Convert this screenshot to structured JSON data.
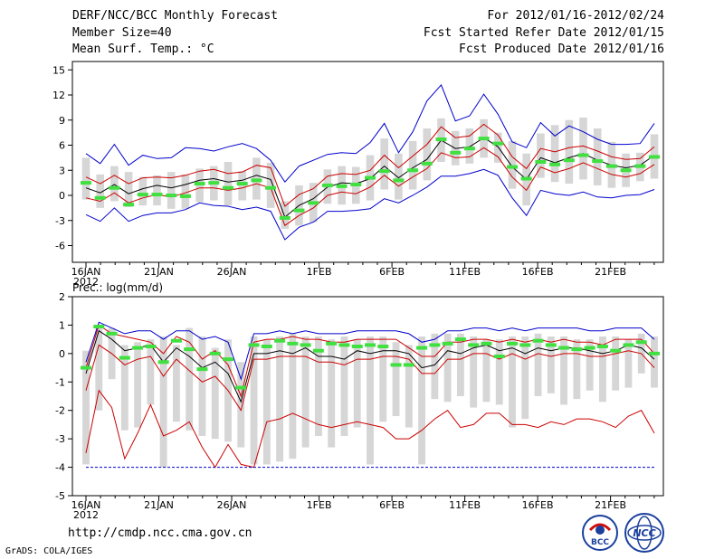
{
  "header": {
    "title": "DERF/NCC/BCC Monthly Forecast",
    "member": "Member Size=40",
    "variable": "Mean Surf. Temp.: °C",
    "period": "For 2012/01/16-2012/02/24",
    "started": "Fcst Started Refer Date 2012/01/15",
    "produced": "Fcst Produced Date 2012/01/16"
  },
  "footer": {
    "url": "http://cmdp.ncc.cma.gov.cn",
    "grads": "GrADS: COLA/IGES"
  },
  "logos": {
    "bcc": "BCC",
    "ncc": "NCC"
  },
  "colors": {
    "box": "#d6d6d6",
    "median": "#40e040",
    "mean": "#000000",
    "red": "#cc0000",
    "blue": "#0000cc",
    "axis": "#000000"
  },
  "chart_data": [
    {
      "type": "line",
      "title": "Mean Surf. Temp.: °C",
      "x_tick_labels": [
        "16JAN",
        "21JAN",
        "26JAN",
        "1FEB",
        "6FEB",
        "11FEB",
        "16FEB",
        "21FEB"
      ],
      "x_tick_days": [
        1,
        6,
        11,
        17,
        22,
        27,
        32,
        37
      ],
      "year_label": "2012",
      "ylim": [
        -8,
        16
      ],
      "y_ticks": [
        -6,
        -3,
        0,
        3,
        6,
        9,
        12,
        15
      ],
      "series": {
        "mean": [
          0.9,
          0.3,
          1.3,
          0.2,
          0.8,
          1.2,
          0.9,
          1.3,
          1.8,
          2.0,
          1.6,
          1.8,
          2.4,
          1.9,
          -2.6,
          -1.2,
          -0.4,
          1.0,
          1.5,
          1.4,
          2.0,
          3.5,
          2.1,
          3.3,
          4.3,
          6.6,
          5.6,
          5.8,
          6.9,
          5.8,
          3.4,
          1.9,
          4.5,
          3.9,
          4.5,
          5.0,
          4.2,
          3.6,
          3.3,
          3.6,
          4.8
        ],
        "upper1": [
          2.2,
          1.4,
          2.4,
          1.4,
          2.1,
          2.2,
          2.1,
          2.4,
          2.9,
          3.1,
          2.6,
          2.8,
          3.6,
          3.3,
          -1.3,
          0.1,
          0.8,
          2.3,
          2.6,
          2.5,
          3.0,
          4.8,
          3.3,
          4.7,
          6.1,
          8.2,
          6.9,
          7.1,
          8.5,
          7.2,
          4.6,
          3.2,
          5.6,
          5.2,
          5.7,
          5.9,
          5.3,
          4.6,
          4.3,
          4.4,
          5.8
        ],
        "lower1": [
          -0.3,
          -0.7,
          0.3,
          -0.9,
          -0.3,
          0.1,
          -0.2,
          0.3,
          0.9,
          0.9,
          0.6,
          0.9,
          1.4,
          0.9,
          -3.6,
          -2.4,
          -1.5,
          0.0,
          0.4,
          0.2,
          1.0,
          2.4,
          1.1,
          2.2,
          3.2,
          5.1,
          4.5,
          4.6,
          5.7,
          4.6,
          2.2,
          0.6,
          3.4,
          2.7,
          3.2,
          3.9,
          3.2,
          2.5,
          2.2,
          2.6,
          3.7
        ],
        "upper2": [
          5.0,
          3.8,
          6.1,
          3.6,
          4.8,
          4.4,
          4.5,
          5.7,
          5.6,
          5.3,
          5.8,
          6.2,
          5.6,
          4.2,
          1.6,
          3.5,
          4.2,
          4.9,
          5.1,
          5.0,
          6.3,
          8.6,
          5.1,
          7.6,
          11.3,
          13.2,
          8.9,
          9.5,
          12.1,
          9.7,
          6.4,
          5.7,
          8.7,
          7.1,
          8.3,
          7.6,
          6.7,
          6.1,
          6.1,
          6.2,
          8.6
        ],
        "lower2": [
          -2.3,
          -3.1,
          -1.5,
          -3.1,
          -2.4,
          -2.1,
          -2.1,
          -1.7,
          -0.9,
          -1.2,
          -1.3,
          -1.7,
          -1.4,
          -1.9,
          -5.3,
          -3.8,
          -3.2,
          -1.9,
          -1.9,
          -1.8,
          -1.6,
          -0.4,
          -0.9,
          0.0,
          1.0,
          2.3,
          2.3,
          2.6,
          3.1,
          2.4,
          -0.3,
          -2.4,
          0.6,
          0.2,
          0.0,
          0.4,
          -0.2,
          -0.3,
          0.0,
          0.1,
          0.7
        ],
        "median": [
          1.5,
          -0.3,
          0.9,
          -1.1,
          0.1,
          0.1,
          0.0,
          -0.1,
          1.4,
          1.5,
          0.9,
          1.4,
          1.8,
          0.9,
          -2.7,
          -1.8,
          -0.9,
          1.2,
          1.1,
          1.3,
          2.1,
          2.9,
          1.8,
          3.0,
          3.8,
          6.7,
          5.1,
          5.6,
          6.8,
          6.2,
          3.4,
          2.0,
          4.0,
          3.7,
          4.2,
          4.8,
          4.1,
          3.5,
          3.0,
          3.5,
          4.6
        ],
        "box_top": [
          4.5,
          2.5,
          3.5,
          2.8,
          2.2,
          2.4,
          2.8,
          2.5,
          3.2,
          3.5,
          4.0,
          2.9,
          4.5,
          3.9,
          -0.7,
          1.2,
          1.5,
          3.1,
          3.5,
          3.4,
          4.8,
          6.8,
          5.0,
          6.5,
          8.0,
          9.2,
          7.7,
          8.0,
          9.1,
          7.5,
          6.5,
          5.0,
          7.4,
          8.4,
          9.0,
          9.3,
          8.0,
          6.4,
          5.0,
          5.1,
          7.3
        ],
        "box_bot": [
          -0.5,
          -1.5,
          -0.7,
          -1.4,
          -1.2,
          -1.2,
          -1.6,
          -1.6,
          -0.8,
          -0.6,
          -1.2,
          -0.6,
          -0.5,
          -1.5,
          -4.0,
          -3.6,
          -3.2,
          -1.0,
          -1.1,
          -1.0,
          -0.6,
          0.7,
          -0.5,
          0.7,
          1.8,
          4.0,
          3.6,
          3.8,
          4.5,
          3.9,
          0.8,
          -1.2,
          2.1,
          1.6,
          1.4,
          1.9,
          1.2,
          0.9,
          1.0,
          1.7,
          2.0
        ]
      }
    },
    {
      "type": "line",
      "title": "Prec.: log(mm/d)",
      "x_tick_labels": [
        "16JAN",
        "21JAN",
        "26JAN",
        "1FEB",
        "6FEB",
        "11FEB",
        "16FEB",
        "21FEB"
      ],
      "x_tick_days": [
        1,
        6,
        11,
        17,
        22,
        27,
        32,
        37
      ],
      "year_label": "2012",
      "ylim": [
        -5,
        2
      ],
      "y_ticks": [
        -5,
        -4,
        -3,
        -2,
        -1,
        0,
        1,
        2
      ],
      "series": {
        "mean": [
          -0.7,
          0.8,
          0.5,
          0.1,
          0.2,
          0.3,
          -0.3,
          0.2,
          -0.1,
          -0.5,
          -0.3,
          -0.7,
          -1.7,
          0.0,
          0.0,
          0.1,
          0.0,
          0.2,
          -0.1,
          -0.1,
          -0.2,
          0.1,
          0.0,
          0.1,
          0.1,
          0.0,
          -0.5,
          -0.4,
          0.1,
          0.0,
          0.2,
          0.3,
          0.1,
          0.2,
          0.0,
          0.2,
          0.1,
          0.2,
          0.2,
          0.1,
          0.0,
          0.1,
          0.3,
          0.2,
          -0.2
        ],
        "upper": [
          -0.5,
          1.0,
          0.7,
          0.6,
          0.5,
          0.4,
          0.0,
          0.6,
          0.4,
          -0.2,
          0.1,
          -0.4,
          -1.5,
          0.4,
          0.5,
          0.5,
          0.6,
          0.5,
          0.5,
          0.4,
          0.4,
          0.5,
          0.5,
          0.5,
          0.5,
          0.2,
          -0.1,
          -0.1,
          0.4,
          0.4,
          0.5,
          0.5,
          0.4,
          0.5,
          0.4,
          0.5,
          0.4,
          0.5,
          0.4,
          0.4,
          0.3,
          0.5,
          0.5,
          0.5,
          0.0
        ],
        "lower": [
          -1.3,
          0.3,
          0.0,
          -0.4,
          -0.2,
          -0.1,
          -0.8,
          -0.2,
          -0.6,
          -1.0,
          -0.8,
          -1.3,
          -2.0,
          -0.2,
          -0.2,
          -0.1,
          -0.1,
          -0.1,
          -0.3,
          -0.3,
          -0.4,
          -0.2,
          -0.2,
          -0.1,
          -0.1,
          -0.2,
          -0.7,
          -0.7,
          -0.2,
          -0.2,
          0.0,
          0.0,
          -0.2,
          0.0,
          -0.2,
          0.0,
          -0.1,
          0.0,
          0.0,
          -0.1,
          -0.1,
          0.0,
          0.1,
          0.0,
          -0.5
        ],
        "upper2": [
          -0.3,
          1.1,
          0.9,
          0.7,
          0.8,
          0.8,
          0.5,
          0.8,
          0.8,
          0.5,
          0.6,
          0.4,
          -0.9,
          0.7,
          0.7,
          0.8,
          0.7,
          0.8,
          0.7,
          0.7,
          0.7,
          0.8,
          0.8,
          0.8,
          0.8,
          0.7,
          0.4,
          0.5,
          0.8,
          0.8,
          0.9,
          0.9,
          0.8,
          0.9,
          0.8,
          0.9,
          0.9,
          0.9,
          0.9,
          0.8,
          0.8,
          0.9,
          0.9,
          0.9,
          0.5
        ],
        "min": [
          -3.5,
          -1.3,
          -1.9,
          -3.7,
          -2.8,
          -1.8,
          -2.9,
          -2.7,
          -2.4,
          -3.3,
          -4.0,
          -3.2,
          -3.9,
          -4.0,
          -2.4,
          -2.3,
          -2.1,
          -2.3,
          -2.5,
          -2.6,
          -2.5,
          -2.4,
          -2.5,
          -2.6,
          -3.0,
          -3.0,
          -2.7,
          -2.3,
          -2.0,
          -2.6,
          -2.5,
          -2.1,
          -2.1,
          -2.5,
          -2.5,
          -2.6,
          -2.4,
          -2.5,
          -2.3,
          -2.3,
          -2.4,
          -2.6,
          -2.2,
          -2.0,
          -2.8
        ],
        "floor": -4.0,
        "median": [
          -0.5,
          0.95,
          0.7,
          -0.15,
          0.2,
          0.25,
          -0.3,
          0.45,
          0.15,
          -0.55,
          0.0,
          -0.2,
          -1.2,
          0.3,
          0.25,
          0.45,
          0.35,
          0.3,
          0.1,
          0.35,
          0.3,
          0.25,
          0.3,
          0.25,
          -0.4,
          -0.4,
          0.2,
          0.3,
          0.35,
          0.5,
          0.3,
          0.35,
          -0.1,
          0.35,
          0.3,
          0.45,
          0.3,
          0.2,
          0.15,
          0.2,
          0.25,
          0.1,
          0.3,
          0.4,
          0.0
        ],
        "box_top": [
          0.1,
          0.9,
          0.9,
          0.3,
          0.4,
          0.5,
          0.6,
          0.3,
          0.9,
          0.6,
          0.2,
          0.5,
          -0.3,
          0.6,
          0.5,
          0.6,
          0.7,
          0.6,
          0.6,
          0.5,
          0.6,
          0.5,
          0.6,
          0.6,
          0.4,
          0.3,
          0.6,
          0.7,
          0.7,
          0.7,
          0.6,
          0.5,
          0.5,
          0.6,
          0.6,
          0.7,
          0.6,
          0.6,
          0.5,
          0.5,
          0.6,
          0.6,
          0.5,
          0.7,
          0.6
        ],
        "box_bot": [
          -3.9,
          -2.0,
          -0.9,
          -2.7,
          -2.6,
          -1.8,
          -4.0,
          -2.4,
          -2.7,
          -2.9,
          -3.0,
          -3.1,
          -3.3,
          -3.9,
          -3.9,
          -3.8,
          -3.7,
          -3.3,
          -2.9,
          -3.3,
          -2.9,
          -2.6,
          -3.9,
          -2.4,
          -2.2,
          -2.6,
          -3.9,
          -1.6,
          -1.7,
          -1.5,
          -1.9,
          -1.7,
          -1.8,
          -2.6,
          -2.3,
          -1.5,
          -1.4,
          -1.8,
          -1.6,
          -1.3,
          -1.7,
          -1.3,
          -1.2,
          -0.7,
          -1.2
        ]
      }
    }
  ]
}
